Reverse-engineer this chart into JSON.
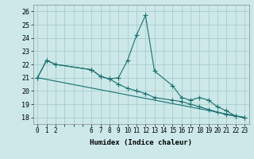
{
  "xlabel": "Humidex (Indice chaleur)",
  "bg_color": "#cce8e8",
  "line_color": "#1a7070",
  "grid_color": "#aacccc",
  "xtick_positions": [
    0,
    1,
    2,
    3,
    4,
    5,
    6,
    7,
    8,
    9,
    10,
    11,
    12,
    13,
    14,
    15,
    16,
    17,
    18,
    19,
    20,
    21,
    22,
    23
  ],
  "xtick_labels": [
    "0",
    "1",
    "2",
    "",
    "",
    "",
    "6",
    "7",
    "8",
    "9",
    "10",
    "11",
    "12",
    "13",
    "14",
    "15",
    "16",
    "17",
    "18",
    "19",
    "20",
    "21",
    "22",
    "23"
  ],
  "yticks": [
    18,
    19,
    20,
    21,
    22,
    23,
    24,
    25,
    26
  ],
  "ylim": [
    17.5,
    26.5
  ],
  "xlim": [
    -0.5,
    23.5
  ],
  "series1_x": [
    0,
    1,
    2,
    6,
    7,
    8,
    9,
    10,
    11,
    12,
    13,
    15,
    16,
    17,
    18,
    19,
    20,
    21,
    22,
    23
  ],
  "series1_y": [
    21.0,
    22.3,
    22.0,
    21.6,
    21.1,
    20.9,
    21.0,
    22.3,
    24.2,
    25.7,
    21.5,
    20.4,
    19.5,
    19.3,
    19.5,
    19.3,
    18.8,
    18.5,
    18.1,
    18.0
  ],
  "series2_x": [
    0,
    1,
    2,
    6,
    7,
    8,
    9,
    10,
    11,
    12,
    13,
    15,
    16,
    17,
    18,
    19,
    20,
    21,
    22,
    23
  ],
  "series2_y": [
    21.0,
    22.3,
    22.0,
    21.6,
    21.1,
    20.9,
    20.5,
    20.2,
    20.0,
    19.8,
    19.5,
    19.3,
    19.2,
    19.0,
    18.8,
    18.6,
    18.4,
    18.2,
    18.1,
    18.0
  ],
  "series3_x": [
    0,
    23
  ],
  "series3_y": [
    21.0,
    18.0
  ]
}
